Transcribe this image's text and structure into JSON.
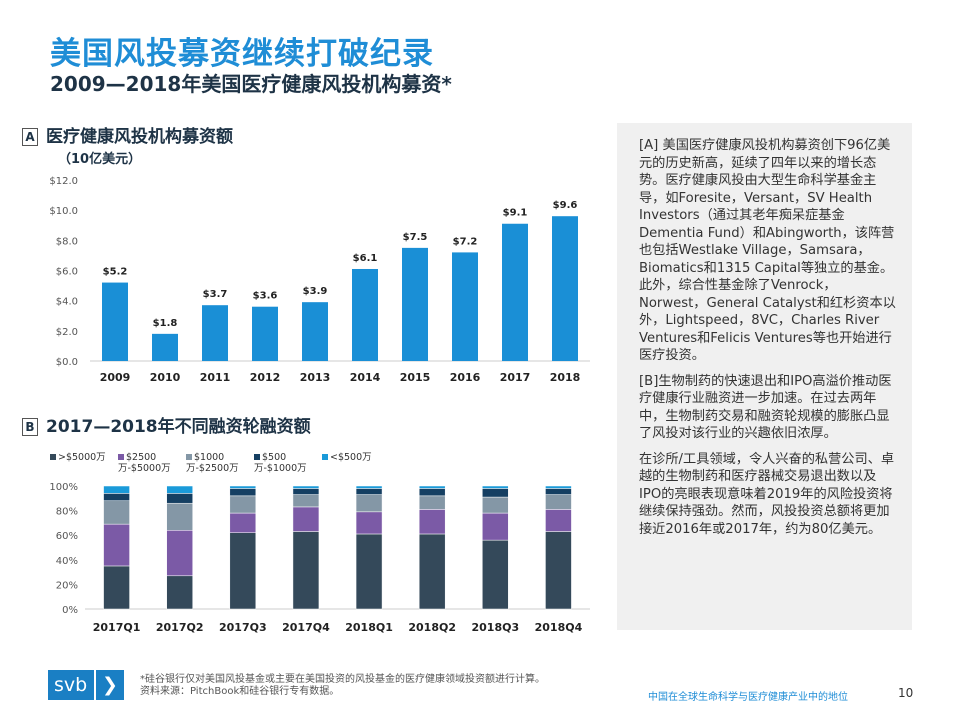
{
  "header": {
    "title": "美国风投募资继续打破纪录",
    "subtitle": "2009—2018年美国医疗健康风投机构募资*"
  },
  "sectionA": {
    "box": "A",
    "title": "医疗健康风投机构募资额",
    "unit": "（10亿美元）"
  },
  "sectionB": {
    "box": "B",
    "title": "2017—2018年不同融资轮融资额"
  },
  "chart_data": [
    {
      "type": "bar",
      "title": "医疗健康风投机构募资额",
      "ylabel": "（10亿美元）",
      "categories": [
        "2009",
        "2010",
        "2011",
        "2012",
        "2013",
        "2014",
        "2015",
        "2016",
        "2017",
        "2018"
      ],
      "values": [
        5.2,
        1.8,
        3.7,
        3.6,
        3.9,
        6.1,
        7.5,
        7.2,
        9.1,
        9.6
      ],
      "data_labels": [
        "$5.2",
        "$1.8",
        "$3.7",
        "$3.6",
        "$3.9",
        "$6.1",
        "$7.5",
        "$7.2",
        "$9.1",
        "$9.6"
      ],
      "yticks": [
        "$0.0",
        "$2.0",
        "$4.0",
        "$6.0",
        "$8.0",
        "$10.0",
        "$12.0"
      ],
      "ylim": [
        0,
        12
      ],
      "color": "#1a8fd6"
    },
    {
      "type": "bar",
      "stacked": true,
      "title": "2017—2018年不同融资轮融资额",
      "categories": [
        "2017Q1",
        "2017Q2",
        "2017Q3",
        "2017Q4",
        "2018Q1",
        "2018Q2",
        "2018Q3",
        "2018Q4"
      ],
      "yticks": [
        "0%",
        "20%",
        "40%",
        "60%",
        "80%",
        "100%"
      ],
      "ylim": [
        0,
        100
      ],
      "legend": "top",
      "series": [
        {
          "name": ">$5000万",
          "color": "#34495a",
          "values": [
            35,
            27,
            62,
            63,
            61,
            61,
            56,
            63
          ]
        },
        {
          "name": "$2500万-$5000万",
          "color": "#7b5aa6",
          "values": [
            34,
            37,
            16,
            20,
            18,
            20,
            22,
            18
          ]
        },
        {
          "name": "$1000万-$2500万",
          "color": "#8497a6",
          "values": [
            19,
            22,
            14,
            10,
            14,
            11,
            13,
            12
          ]
        },
        {
          "name": "$500万-$1000万",
          "color": "#153f62",
          "values": [
            6,
            8,
            6,
            5,
            5,
            6,
            7,
            5
          ]
        },
        {
          "name": "<$500万",
          "color": "#1a9ad9",
          "values": [
            6,
            6,
            2,
            2,
            2,
            2,
            2,
            2
          ]
        }
      ]
    }
  ],
  "panel": {
    "paragraphs": [
      "[A] 美国医疗健康风投机构募资创下96亿美元的历史新高，延续了四年以来的增长态势。医疗健康风投由大型生命科学基金主导，如Foresite，Versant，SV Health Investors（通过其老年痴呆症基金Dementia Fund）和Abingworth，该阵营也包括Westlake Village，Samsara，Biomatics和1315 Capital等独立的基金。此外，综合性基金除了Venrock，Norwest，General Catalyst和红杉资本以外，Lightspeed，8VC，Charles River Ventures和Felicis Ventures等也开始进行医疗投资。",
      "[B]生物制药的快速退出和IPO高溢价推动医疗健康行业融资进一步加速。在过去两年中，生物制药交易和融资轮规模的膨胀凸显了风投对该行业的兴趣依旧浓厚。",
      "在诊所/工具领域，令人兴奋的私营公司、卓越的生物制药和医疗器械交易退出数以及IPO的亮眼表现意味着2019年的风险投资将继续保持强劲。然而，风投投资总额将更加接近2016年或2017年，约为80亿美元。"
    ]
  },
  "footer": {
    "logo": "svb",
    "note": "*硅谷银行仅对美国风投基金或主要在美国投资的风投基金的医疗健康领域投资额进行计算。",
    "source": "资料来源：PitchBook和硅谷银行专有数据。",
    "doc_title": "中国在全球生命科学与医疗健康产业中的地位",
    "page": "10"
  }
}
